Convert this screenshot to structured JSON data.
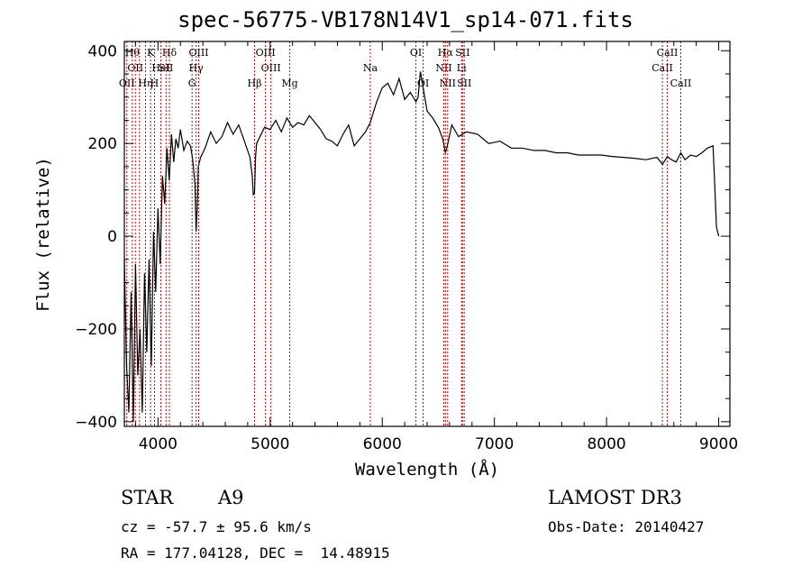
{
  "header": {
    "title": "spec-56775-VB178N14V1_sp14-071.fits"
  },
  "info": {
    "object_class": "STAR",
    "subclass": "A9",
    "survey": "LAMOST DR3",
    "redshift": "cz = -57.7 ± 95.6 km/s",
    "obs_date": "Obs-Date: 20140427",
    "coords": "RA = 177.04128, DEC =  14.48915"
  },
  "chart_data": {
    "type": "line",
    "title": "spec-56775-VB178N14V1_sp14-071.fits",
    "xlabel": "Wavelength (Å)",
    "ylabel": "Flux (relative)",
    "xlim": [
      3700,
      9100
    ],
    "ylim": [
      -410,
      420
    ],
    "xticks": [
      4000,
      5000,
      6000,
      7000,
      8000,
      9000
    ],
    "yticks": [
      -400,
      -200,
      0,
      200,
      400
    ],
    "line_color": "#000000",
    "marker_color": "#cc0000",
    "series": [
      {
        "x": [
          3700,
          3720,
          3740,
          3760,
          3780,
          3800,
          3820,
          3840,
          3860,
          3880,
          3900,
          3920,
          3940,
          3960,
          3980,
          4000,
          4020,
          4040,
          4060,
          4080,
          4100,
          4120,
          4140,
          4160,
          4180,
          4200,
          4230,
          4260,
          4290,
          4310,
          4330,
          4340,
          4350,
          4360,
          4380,
          4420,
          4470,
          4520,
          4570,
          4620,
          4670,
          4720,
          4770,
          4820,
          4840,
          4850,
          4861,
          4870,
          4880,
          4900,
          4950,
          5000,
          5050,
          5100,
          5150,
          5200,
          5250,
          5300,
          5350,
          5400,
          5450,
          5500,
          5550,
          5600,
          5650,
          5700,
          5750,
          5800,
          5850,
          5893,
          5950,
          6000,
          6050,
          6100,
          6150,
          6200,
          6250,
          6300,
          6320,
          6340,
          6400,
          6450,
          6500,
          6540,
          6563,
          6580,
          6620,
          6680,
          6750,
          6850,
          6950,
          7050,
          7150,
          7250,
          7350,
          7450,
          7550,
          7650,
          7750,
          7850,
          7950,
          8050,
          8150,
          8250,
          8350,
          8450,
          8500,
          8542,
          8580,
          8620,
          8662,
          8700,
          8750,
          8800,
          8850,
          8900,
          8950,
          8980,
          9000
        ],
        "y": [
          -50,
          -280,
          -380,
          -120,
          -400,
          -60,
          -300,
          -200,
          -380,
          -80,
          -250,
          -50,
          -280,
          10,
          -120,
          60,
          -60,
          130,
          70,
          190,
          120,
          220,
          160,
          210,
          190,
          230,
          185,
          205,
          195,
          165,
          110,
          10,
          60,
          150,
          170,
          190,
          225,
          200,
          215,
          245,
          220,
          240,
          205,
          170,
          130,
          90,
          95,
          170,
          200,
          210,
          235,
          230,
          250,
          225,
          255,
          235,
          245,
          240,
          260,
          245,
          230,
          210,
          205,
          195,
          220,
          240,
          195,
          210,
          225,
          245,
          290,
          320,
          330,
          305,
          340,
          295,
          310,
          290,
          300,
          355,
          270,
          255,
          235,
          210,
          180,
          195,
          240,
          215,
          225,
          220,
          200,
          205,
          190,
          190,
          185,
          185,
          180,
          180,
          175,
          175,
          175,
          172,
          170,
          168,
          165,
          170,
          155,
          172,
          165,
          160,
          180,
          165,
          175,
          172,
          180,
          190,
          195,
          20,
          0
        ]
      }
    ],
    "line_markers": [
      {
        "x": 3722,
        "label": "OII",
        "row": 2
      },
      {
        "x": 3771,
        "label": "Hθ",
        "row": 0
      },
      {
        "x": 3798,
        "label": "OII",
        "row": 1
      },
      {
        "x": 3835,
        "label": "",
        "row": 0
      },
      {
        "x": 3889,
        "label": "Hη",
        "row": 2
      },
      {
        "x": 3934,
        "label": "K",
        "row": 0
      },
      {
        "x": 3969,
        "label": "H",
        "row": 2
      },
      {
        "x": 4026,
        "label": "HeI",
        "row": 1
      },
      {
        "x": 4072,
        "label": "SII",
        "row": 1
      },
      {
        "x": 4102,
        "label": "Hδ",
        "row": 0
      },
      {
        "x": 4304,
        "label": "G",
        "row": 2
      },
      {
        "x": 4340,
        "label": "Hγ",
        "row": 1
      },
      {
        "x": 4363,
        "label": "OIII",
        "row": 0
      },
      {
        "x": 4861,
        "label": "Hβ",
        "row": 2
      },
      {
        "x": 4959,
        "label": "OIII",
        "row": 0
      },
      {
        "x": 5007,
        "label": "OIII",
        "row": 1
      },
      {
        "x": 5175,
        "label": "Mg",
        "row": 2
      },
      {
        "x": 5893,
        "label": "Na",
        "row": 1
      },
      {
        "x": 6300,
        "label": "OI",
        "row": 0
      },
      {
        "x": 6364,
        "label": "OI",
        "row": 2
      },
      {
        "x": 6548,
        "label": "NII",
        "row": 1
      },
      {
        "x": 6563,
        "label": "Hα",
        "row": 0
      },
      {
        "x": 6583,
        "label": "NII",
        "row": 2
      },
      {
        "x": 6707,
        "label": "Li",
        "row": 1
      },
      {
        "x": 6716,
        "label": "SII",
        "row": 0
      },
      {
        "x": 6731,
        "label": "SII",
        "row": 2
      },
      {
        "x": 8498,
        "label": "CaII",
        "row": 1
      },
      {
        "x": 8542,
        "label": "CaII",
        "row": 0
      },
      {
        "x": 8662,
        "label": "CaII",
        "row": 2
      }
    ]
  }
}
